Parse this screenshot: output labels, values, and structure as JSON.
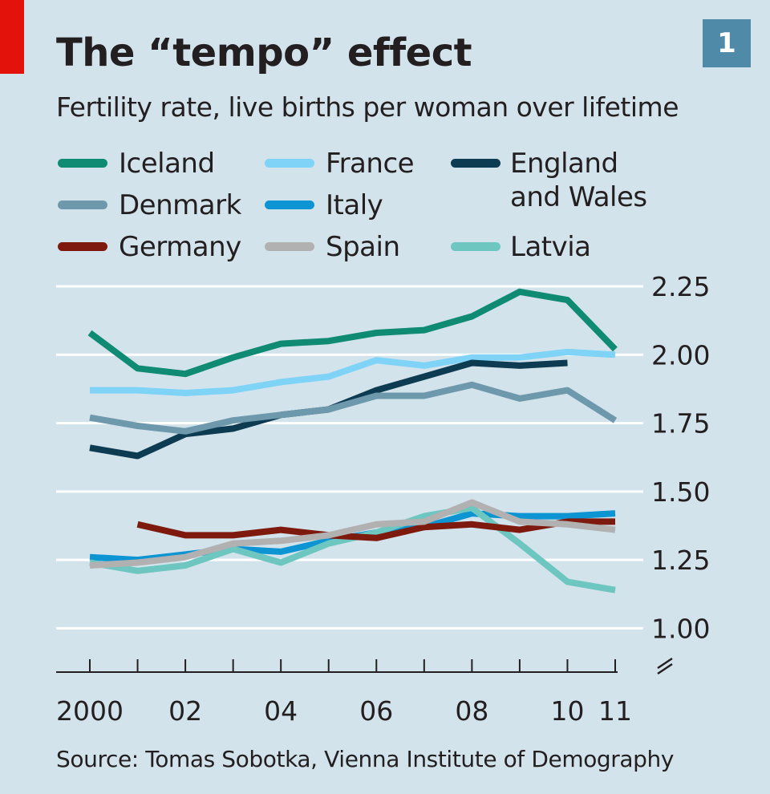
{
  "header": {
    "title": "The “tempo” effect",
    "subtitle": "Fertility rate, live births per woman over lifetime",
    "badge": "1"
  },
  "footer": {
    "source": "Source: Tomas Sobotka, Vienna Institute of Demography"
  },
  "chart_data": {
    "type": "line",
    "title": "The “tempo” effect",
    "subtitle": "Fertility rate, live births per woman over lifetime",
    "xlabel": "",
    "ylabel": "",
    "x": [
      2000,
      2001,
      2002,
      2003,
      2004,
      2005,
      2006,
      2007,
      2008,
      2009,
      2010,
      2011
    ],
    "x_tick_values": [
      2000,
      2002,
      2004,
      2006,
      2008,
      2010,
      2011
    ],
    "x_tick_labels": [
      "2000",
      "02",
      "04",
      "06",
      "08",
      "10",
      "11"
    ],
    "y_tick_values": [
      1.0,
      1.25,
      1.5,
      1.75,
      2.0,
      2.25
    ],
    "y_tick_labels": [
      "1.00",
      "1.25",
      "1.50",
      "1.75",
      "2.00",
      "2.25"
    ],
    "ylim": [
      0.84,
      2.25
    ],
    "y_axis_side": "right",
    "axis_break": true,
    "series": [
      {
        "name": "Iceland",
        "color": "#0f8a73",
        "values": [
          2.08,
          1.95,
          1.93,
          1.99,
          2.04,
          2.05,
          2.08,
          2.09,
          2.14,
          2.23,
          2.2,
          2.02
        ]
      },
      {
        "name": "France",
        "color": "#7ed3f7",
        "values": [
          1.87,
          1.87,
          1.86,
          1.87,
          1.9,
          1.92,
          1.98,
          1.96,
          1.99,
          1.99,
          2.01,
          2.0
        ]
      },
      {
        "name": "England and Wales",
        "color": "#0c3b52",
        "values": [
          1.66,
          1.63,
          1.71,
          1.73,
          1.78,
          1.8,
          1.87,
          1.92,
          1.97,
          1.96,
          1.97,
          null
        ]
      },
      {
        "name": "Denmark",
        "color": "#6e98ac",
        "values": [
          1.77,
          1.74,
          1.72,
          1.76,
          1.78,
          1.8,
          1.85,
          1.85,
          1.89,
          1.84,
          1.87,
          1.76
        ]
      },
      {
        "name": "Italy",
        "color": "#0d94d2",
        "values": [
          1.26,
          1.25,
          1.27,
          1.29,
          1.28,
          1.32,
          1.35,
          1.37,
          1.42,
          1.41,
          1.41,
          1.42
        ]
      },
      {
        "name": "Latvia",
        "color": "#6ec6c0",
        "values": [
          1.24,
          1.21,
          1.23,
          1.29,
          1.24,
          1.31,
          1.35,
          1.41,
          1.44,
          1.31,
          1.17,
          1.14
        ]
      },
      {
        "name": "Germany",
        "color": "#7d1a0d",
        "values": [
          null,
          1.38,
          1.34,
          1.34,
          1.36,
          1.34,
          1.33,
          1.37,
          1.38,
          1.36,
          1.39,
          1.39
        ]
      },
      {
        "name": "Spain",
        "color": "#b1b1b1",
        "values": [
          1.23,
          1.24,
          1.26,
          1.31,
          1.32,
          1.34,
          1.38,
          1.39,
          1.46,
          1.39,
          1.38,
          1.36
        ]
      }
    ],
    "legend": {
      "position": "top",
      "items": [
        {
          "label": "Iceland",
          "color": "#0f8a73"
        },
        {
          "label": "France",
          "color": "#7ed3f7"
        },
        {
          "label": "England\nand Wales",
          "color": "#0c3b52"
        },
        {
          "label": "Denmark",
          "color": "#6e98ac"
        },
        {
          "label": "Italy",
          "color": "#0d94d2"
        },
        {
          "label": "Germany",
          "color": "#7d1a0d"
        },
        {
          "label": "Spain",
          "color": "#b1b1b1"
        },
        {
          "label": "Latvia",
          "color": "#6ec6c0"
        }
      ]
    }
  }
}
